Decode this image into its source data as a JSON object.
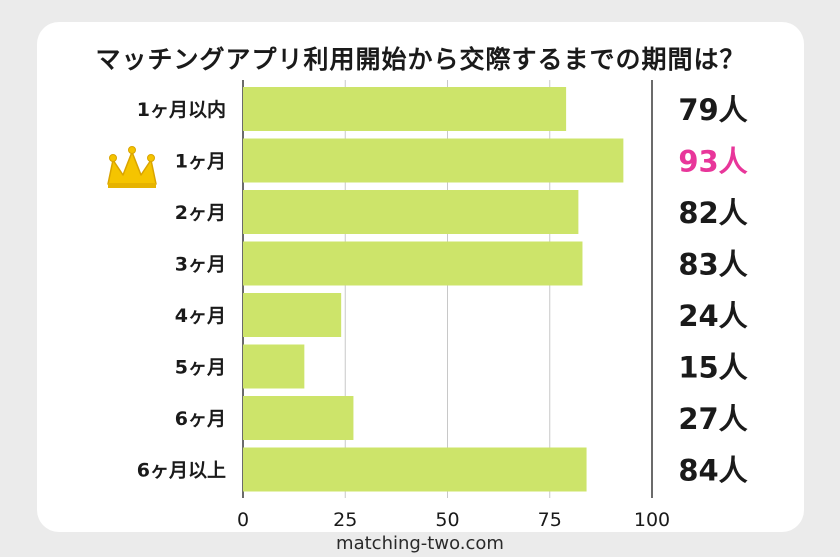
{
  "footer": "matching-two.com",
  "chart_data": {
    "type": "bar",
    "orientation": "horizontal",
    "title": "マッチングアプリ利用開始から交際するまでの期間は？",
    "categories": [
      "1ヶ月以内",
      "1ヶ月",
      "2ヶ月",
      "3ヶ月",
      "4ヶ月",
      "5ヶ月",
      "6ヶ月",
      "6ヶ月以上"
    ],
    "values": [
      79,
      93,
      82,
      83,
      24,
      15,
      27,
      84
    ],
    "value_labels": [
      "79人",
      "93人",
      "82人",
      "83人",
      "24人",
      "15人",
      "27人",
      "84人"
    ],
    "highlight_index": 1,
    "highlight_icon": "crown-icon",
    "xlim": [
      0,
      100
    ],
    "xticks": [
      0,
      25,
      50,
      75,
      100
    ],
    "grid": true,
    "colors": {
      "bar": "#cde46a",
      "grid": "#c8c8c8",
      "text": "#1a1a1a",
      "highlight": "#e8369a",
      "crown": "#f5c400"
    }
  }
}
